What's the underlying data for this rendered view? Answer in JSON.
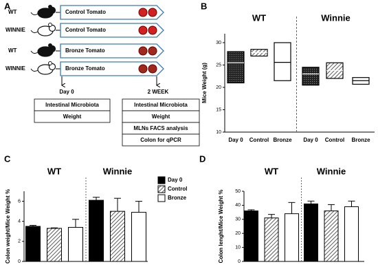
{
  "diagram": {
    "label": "A",
    "rows": [
      {
        "group": "WT",
        "treatment": "Control Tomato"
      },
      {
        "group": "WINNIE",
        "treatment": "Control Tomato"
      },
      {
        "group": "WT",
        "treatment": "Bronze Tomato"
      },
      {
        "group": "WINNIE",
        "treatment": "Bronze Tomato"
      }
    ],
    "timepoints": [
      {
        "label": "Day 0",
        "items": [
          "Intestinal Microbiota",
          "Weight"
        ]
      },
      {
        "label": "2 WEEK",
        "items": [
          "Intestinal Microbiota",
          "Weight",
          "MLNs FACS analysis",
          "Colon for qPCR"
        ]
      }
    ]
  },
  "chart_data": [
    {
      "type": "floating-bar",
      "panel": "B",
      "y_label": "Mice Weight (g)",
      "groups": [
        "WT",
        "Winnie"
      ],
      "categories": [
        "Day 0",
        "Control",
        "Bronze",
        "Day 0",
        "Control",
        "Bronze"
      ],
      "low": [
        21,
        27,
        21.5,
        20.5,
        22,
        20.7
      ],
      "high": [
        28,
        28.5,
        30,
        24.5,
        25.5,
        22.2
      ],
      "mid": [
        25.5,
        27.8,
        25.6,
        23,
        23.8,
        21.5
      ],
      "fills": [
        "dots",
        "hatch",
        "white",
        "dots",
        "hatch",
        "white"
      ],
      "ylim": [
        10,
        32
      ],
      "yticks": [
        10,
        15,
        20,
        25,
        30
      ]
    },
    {
      "type": "bar",
      "panel": "C",
      "y_label": "Colon weight/Mice Weight %",
      "categories": [
        "WT",
        "Winnie"
      ],
      "series": [
        {
          "name": "Day 0",
          "color": "#000000",
          "values": [
            3.5,
            6.1
          ],
          "errors": [
            0.1,
            0.3
          ]
        },
        {
          "name": "Control",
          "color": "hatch",
          "values": [
            3.3,
            5.0
          ],
          "errors": [
            0.05,
            1.3
          ]
        },
        {
          "name": "Bronze",
          "color": "#ffffff",
          "values": [
            3.4,
            4.9
          ],
          "errors": [
            0.8,
            1.1
          ]
        }
      ],
      "ylim": [
        0,
        7
      ],
      "yticks": [
        0,
        2,
        4,
        6
      ],
      "legend": "upper right"
    },
    {
      "type": "bar",
      "panel": "D",
      "y_label": "Colon lenght/Mice Weight %",
      "categories": [
        "WT",
        "Winnie"
      ],
      "series": [
        {
          "name": "Day 0",
          "color": "#000000",
          "values": [
            36,
            41
          ],
          "errors": [
            0.8,
            2
          ]
        },
        {
          "name": "Control",
          "color": "hatch",
          "values": [
            31,
            36
          ],
          "errors": [
            2.5,
            4.5
          ]
        },
        {
          "name": "Bronze",
          "color": "#ffffff",
          "values": [
            34,
            39
          ],
          "errors": [
            8,
            4
          ]
        }
      ],
      "ylim": [
        0,
        50
      ],
      "yticks": [
        0,
        10,
        20,
        30,
        40,
        50
      ]
    }
  ]
}
